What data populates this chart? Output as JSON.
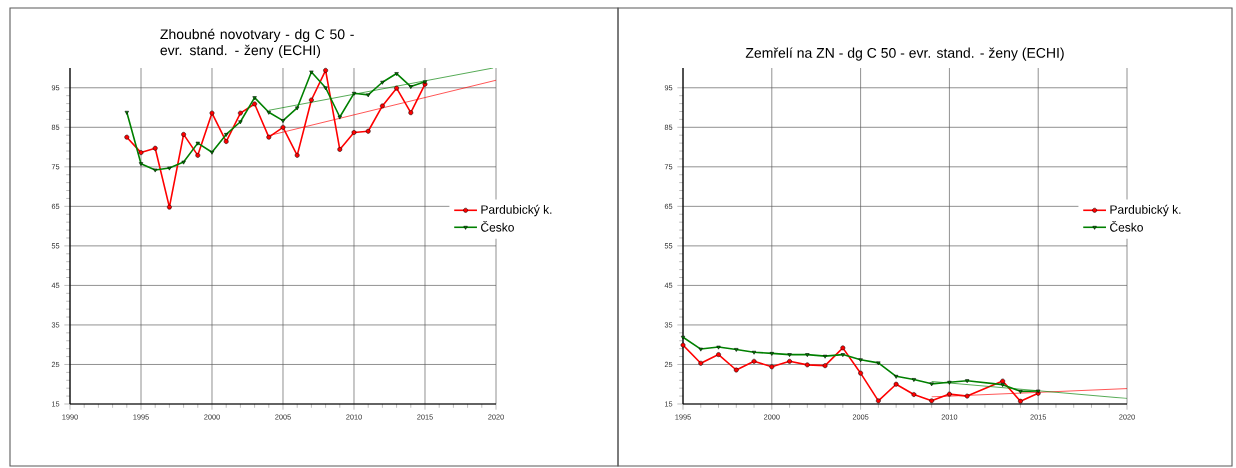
{
  "chart_data": [
    {
      "type": "line",
      "title": "Zhoubné novotvary - dg C 50 - evr. stand. - ženy (ECHI)",
      "xlim": [
        1990,
        2020
      ],
      "xticks": [
        1990,
        1995,
        2000,
        2005,
        2010,
        2015,
        2020
      ],
      "ylim": [
        15,
        100
      ],
      "yticks": [
        15,
        25,
        35,
        45,
        55,
        65,
        75,
        85,
        95
      ],
      "grid": true,
      "legend": "right",
      "series": [
        {
          "name": "Pardubický k.",
          "color": "#ff0000",
          "marker": "circle",
          "x": [
            1994,
            1995,
            1996,
            1997,
            1998,
            1999,
            2000,
            2001,
            2002,
            2003,
            2004,
            2005,
            2006,
            2007,
            2008,
            2009,
            2010,
            2011,
            2012,
            2013,
            2014,
            2015
          ],
          "values": [
            82.5,
            78.6,
            79.7,
            64.8,
            83.2,
            77.9,
            88.6,
            81.4,
            88.6,
            90.9,
            82.5,
            85.0,
            77.9,
            91.9,
            99.4,
            79.4,
            83.7,
            84.0,
            90.4,
            94.9,
            88.7,
            95.9
          ]
        },
        {
          "name": "Česko",
          "color": "#008000",
          "marker": "triangle",
          "x": [
            1994,
            1995,
            1996,
            1997,
            1998,
            1999,
            2000,
            2001,
            2002,
            2003,
            2004,
            2005,
            2006,
            2007,
            2008,
            2009,
            2010,
            2011,
            2012,
            2013,
            2014,
            2015
          ],
          "values": [
            88.8,
            75.8,
            74.2,
            74.7,
            76.2,
            81.0,
            78.7,
            83.2,
            86.4,
            92.5,
            88.8,
            86.7,
            89.9,
            99.0,
            95.0,
            87.6,
            93.6,
            93.2,
            96.4,
            98.6,
            95.3,
            96.5
          ]
        },
        {
          "type": "line",
          "color": "#ff0000",
          "marker": "none",
          "x": [
            2004,
            2020
          ],
          "values": [
            82.9,
            96.9
          ]
        },
        {
          "type": "line",
          "color": "#008000",
          "marker": "none",
          "x": [
            2004,
            2019.8
          ],
          "values": [
            89.3,
            100
          ]
        }
      ]
    },
    {
      "type": "line",
      "title": "Zemřelí na ZN - dg C 50 - evr. stand. - ženy (ECHI)",
      "xlim": [
        1995,
        2020
      ],
      "xticks": [
        1995,
        2000,
        2005,
        2010,
        2015,
        2020
      ],
      "ylim": [
        15,
        100
      ],
      "yticks": [
        15,
        25,
        35,
        45,
        55,
        65,
        75,
        85,
        95
      ],
      "grid": true,
      "legend": "right",
      "series": [
        {
          "name": "Pardubický k.",
          "color": "#ff0000",
          "marker": "circle",
          "x": [
            1995,
            1996,
            1997,
            1998,
            1999,
            2000,
            2001,
            2002,
            2003,
            2004,
            2005,
            2006,
            2007,
            2008,
            2009,
            2010,
            2011,
            2013,
            2014,
            2015
          ],
          "values": [
            29.9,
            25.3,
            27.5,
            23.6,
            25.8,
            24.4,
            25.8,
            24.9,
            24.7,
            29.2,
            22.8,
            15.8,
            20.0,
            17.4,
            15.8,
            17.5,
            17.0,
            20.8,
            15.7,
            17.7
          ]
        },
        {
          "name": "Česko",
          "color": "#008000",
          "marker": "triangle",
          "x": [
            1995,
            1996,
            1997,
            1998,
            1999,
            2000,
            2001,
            2002,
            2003,
            2004,
            2005,
            2006,
            2007,
            2008,
            2009,
            2010,
            2011,
            2013,
            2014,
            2015
          ],
          "values": [
            31.9,
            28.9,
            29.4,
            28.8,
            28.1,
            27.8,
            27.5,
            27.5,
            27.1,
            27.5,
            26.2,
            25.4,
            22.0,
            21.2,
            20.1,
            20.5,
            20.9,
            19.9,
            18.2,
            18.3
          ]
        },
        {
          "type": "line",
          "color": "#ff0000",
          "marker": "none",
          "x": [
            2009,
            2020
          ],
          "values": [
            16.8,
            18.9
          ]
        },
        {
          "type": "line",
          "color": "#008000",
          "marker": "none",
          "x": [
            2009,
            2020
          ],
          "values": [
            20.7,
            16.4
          ]
        }
      ]
    }
  ]
}
